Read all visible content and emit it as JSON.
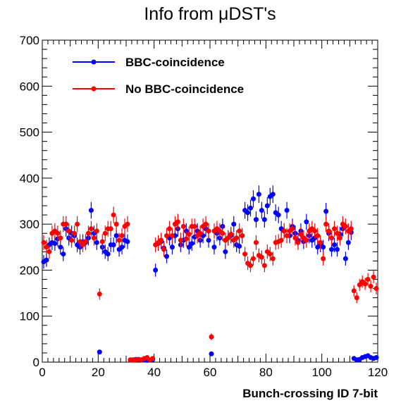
{
  "chart_data": {
    "type": "scatter",
    "title": "Info from μDST's",
    "xlabel": "Bunch-crossing ID 7-bit",
    "ylabel": "",
    "xlim": [
      0,
      120
    ],
    "ylim": [
      0,
      700
    ],
    "x_ticks": [
      "0",
      "20",
      "40",
      "60",
      "80",
      "100",
      "120"
    ],
    "y_ticks": [
      "0",
      "100",
      "200",
      "300",
      "400",
      "500",
      "600",
      "700"
    ],
    "grid": false,
    "legend_position": "top-left",
    "error_bars": true,
    "series": [
      {
        "name": "BBC-coincidence",
        "color": "#0000ff",
        "points": [
          [
            0,
            218
          ],
          [
            1,
            222
          ],
          [
            2,
            255
          ],
          [
            3,
            260
          ],
          [
            4,
            258
          ],
          [
            5,
            268
          ],
          [
            6,
            250
          ],
          [
            7,
            235
          ],
          [
            8,
            290
          ],
          [
            9,
            270
          ],
          [
            10,
            280
          ],
          [
            11,
            275
          ],
          [
            12,
            255
          ],
          [
            13,
            250
          ],
          [
            14,
            262
          ],
          [
            15,
            260
          ],
          [
            16,
            270
          ],
          [
            17,
            330
          ],
          [
            18,
            280
          ],
          [
            19,
            260
          ],
          [
            20,
            22
          ],
          [
            21,
            250
          ],
          [
            22,
            240
          ],
          [
            23,
            235
          ],
          [
            24,
            255
          ],
          [
            25,
            255
          ],
          [
            26,
            275
          ],
          [
            27,
            245
          ],
          [
            28,
            250
          ],
          [
            29,
            265
          ],
          [
            30,
            262
          ],
          [
            31,
            5
          ],
          [
            32,
            5
          ],
          [
            33,
            6
          ],
          [
            34,
            6
          ],
          [
            35,
            5
          ],
          [
            36,
            5
          ],
          [
            37,
            4
          ],
          [
            38,
            5
          ],
          [
            39,
            6
          ],
          [
            40,
            200
          ],
          [
            41,
            258
          ],
          [
            42,
            262
          ],
          [
            43,
            248
          ],
          [
            44,
            230
          ],
          [
            45,
            270
          ],
          [
            46,
            250
          ],
          [
            47,
            275
          ],
          [
            48,
            290
          ],
          [
            49,
            255
          ],
          [
            50,
            265
          ],
          [
            51,
            285
          ],
          [
            52,
            250
          ],
          [
            53,
            258
          ],
          [
            54,
            272
          ],
          [
            55,
            285
          ],
          [
            56,
            265
          ],
          [
            57,
            275
          ],
          [
            58,
            290
          ],
          [
            59,
            265
          ],
          [
            60,
            18
          ],
          [
            61,
            250
          ],
          [
            62,
            280
          ],
          [
            63,
            270
          ],
          [
            64,
            295
          ],
          [
            65,
            240
          ],
          [
            66,
            270
          ],
          [
            67,
            275
          ],
          [
            68,
            300
          ],
          [
            69,
            255
          ],
          [
            70,
            252
          ],
          [
            71,
            275
          ],
          [
            72,
            330
          ],
          [
            73,
            325
          ],
          [
            74,
            335
          ],
          [
            75,
            355
          ],
          [
            76,
            310
          ],
          [
            77,
            365
          ],
          [
            78,
            330
          ],
          [
            79,
            310
          ],
          [
            80,
            340
          ],
          [
            81,
            360
          ],
          [
            82,
            365
          ],
          [
            83,
            325
          ],
          [
            84,
            320
          ],
          [
            85,
            290
          ],
          [
            86,
            285
          ],
          [
            87,
            330
          ],
          [
            88,
            275
          ],
          [
            89,
            295
          ],
          [
            90,
            280
          ],
          [
            91,
            265
          ],
          [
            92,
            285
          ],
          [
            93,
            262
          ],
          [
            94,
            305
          ],
          [
            95,
            275
          ],
          [
            96,
            265
          ],
          [
            97,
            270
          ],
          [
            98,
            250
          ],
          [
            99,
            255
          ],
          [
            100,
            250
          ],
          [
            101,
            328
          ],
          [
            102,
            280
          ],
          [
            103,
            245
          ],
          [
            104,
            255
          ],
          [
            105,
            245
          ],
          [
            106,
            278
          ],
          [
            107,
            290
          ],
          [
            108,
            225
          ],
          [
            109,
            260
          ],
          [
            110,
            282
          ],
          [
            111,
            8
          ],
          [
            112,
            5
          ],
          [
            113,
            6
          ],
          [
            114,
            10
          ],
          [
            115,
            12
          ],
          [
            116,
            14
          ],
          [
            117,
            10
          ],
          [
            118,
            8
          ],
          [
            119,
            10
          ]
        ]
      },
      {
        "name": "No BBC-coincidence",
        "color": "#ff0000",
        "points": [
          [
            0,
            260
          ],
          [
            1,
            250
          ],
          [
            2,
            240
          ],
          [
            3,
            280
          ],
          [
            4,
            285
          ],
          [
            5,
            280
          ],
          [
            6,
            270
          ],
          [
            7,
            300
          ],
          [
            8,
            300
          ],
          [
            9,
            285
          ],
          [
            10,
            265
          ],
          [
            11,
            280
          ],
          [
            12,
            300
          ],
          [
            13,
            262
          ],
          [
            14,
            255
          ],
          [
            15,
            262
          ],
          [
            16,
            280
          ],
          [
            17,
            290
          ],
          [
            18,
            270
          ],
          [
            19,
            285
          ],
          [
            20,
            148
          ],
          [
            21,
            262
          ],
          [
            22,
            280
          ],
          [
            23,
            290
          ],
          [
            24,
            290
          ],
          [
            25,
            320
          ],
          [
            26,
            300
          ],
          [
            27,
            265
          ],
          [
            28,
            275
          ],
          [
            29,
            295
          ],
          [
            30,
            300
          ],
          [
            31,
            5
          ],
          [
            32,
            4
          ],
          [
            33,
            5
          ],
          [
            34,
            6
          ],
          [
            35,
            5
          ],
          [
            36,
            8
          ],
          [
            37,
            10
          ],
          [
            38,
            5
          ],
          [
            39,
            8
          ],
          [
            40,
            255
          ],
          [
            41,
            260
          ],
          [
            42,
            265
          ],
          [
            43,
            245
          ],
          [
            44,
            275
          ],
          [
            45,
            290
          ],
          [
            46,
            275
          ],
          [
            47,
            300
          ],
          [
            48,
            305
          ],
          [
            49,
            265
          ],
          [
            50,
            295
          ],
          [
            51,
            268
          ],
          [
            52,
            278
          ],
          [
            53,
            295
          ],
          [
            54,
            295
          ],
          [
            55,
            275
          ],
          [
            56,
            280
          ],
          [
            57,
            295
          ],
          [
            58,
            300
          ],
          [
            59,
            285
          ],
          [
            60,
            55
          ],
          [
            61,
            285
          ],
          [
            62,
            290
          ],
          [
            63,
            285
          ],
          [
            64,
            280
          ],
          [
            65,
            265
          ],
          [
            66,
            270
          ],
          [
            67,
            278
          ],
          [
            68,
            265
          ],
          [
            69,
            270
          ],
          [
            70,
            285
          ],
          [
            71,
            275
          ],
          [
            72,
            235
          ],
          [
            73,
            215
          ],
          [
            74,
            210
          ],
          [
            75,
            225
          ],
          [
            76,
            260
          ],
          [
            77,
            232
          ],
          [
            78,
            228
          ],
          [
            79,
            210
          ],
          [
            80,
            240
          ],
          [
            81,
            235
          ],
          [
            82,
            225
          ],
          [
            83,
            260
          ],
          [
            84,
            262
          ],
          [
            85,
            265
          ],
          [
            86,
            285
          ],
          [
            87,
            275
          ],
          [
            88,
            285
          ],
          [
            89,
            290
          ],
          [
            90,
            270
          ],
          [
            91,
            260
          ],
          [
            92,
            278
          ],
          [
            93,
            270
          ],
          [
            94,
            265
          ],
          [
            95,
            285
          ],
          [
            96,
            290
          ],
          [
            97,
            285
          ],
          [
            98,
            275
          ],
          [
            99,
            260
          ],
          [
            100,
            225
          ],
          [
            101,
            300
          ],
          [
            102,
            285
          ],
          [
            103,
            270
          ],
          [
            104,
            290
          ],
          [
            105,
            280
          ],
          [
            106,
            270
          ],
          [
            107,
            300
          ],
          [
            108,
            295
          ],
          [
            109,
            285
          ],
          [
            110,
            290
          ],
          [
            111,
            155
          ],
          [
            112,
            140
          ],
          [
            113,
            168
          ],
          [
            114,
            175
          ],
          [
            115,
            170
          ],
          [
            116,
            180
          ],
          [
            117,
            165
          ],
          [
            118,
            185
          ],
          [
            119,
            160
          ]
        ]
      }
    ]
  }
}
